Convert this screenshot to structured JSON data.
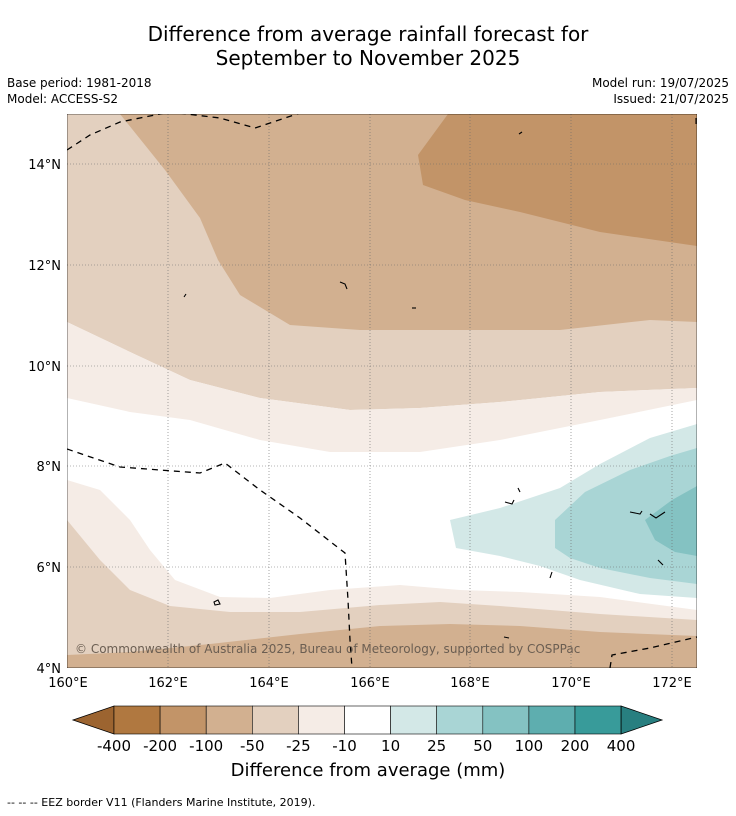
{
  "title": {
    "line1": "Difference from average rainfall forecast for",
    "line2": "September to November 2025"
  },
  "meta": {
    "base_period": "Base period: 1981-2018",
    "model": "Model: ACCESS-S2",
    "model_run": "Model run: 19/07/2025",
    "issued": "Issued: 21/07/2025"
  },
  "map": {
    "extent": {
      "lon": [
        160,
        172.5
      ],
      "lat": [
        4,
        15
      ]
    },
    "lon_ticks": [
      {
        "value": 160,
        "label": "160°E"
      },
      {
        "value": 162,
        "label": "162°E"
      },
      {
        "value": 164,
        "label": "164°E"
      },
      {
        "value": 166,
        "label": "166°E"
      },
      {
        "value": 168,
        "label": "168°E"
      },
      {
        "value": 170,
        "label": "170°E"
      },
      {
        "value": 172,
        "label": "172°E"
      }
    ],
    "lat_ticks": [
      {
        "value": 4,
        "label": "4°N"
      },
      {
        "value": 6,
        "label": "6°N"
      },
      {
        "value": 8,
        "label": "8°N"
      },
      {
        "value": 10,
        "label": "10°N"
      },
      {
        "value": 12,
        "label": "12°N"
      },
      {
        "value": 14,
        "label": "14°N"
      }
    ],
    "gridlines": true,
    "copyright": "© Commonwealth of Australia 2025, Bureau of Meteorology, supported by COSPPac"
  },
  "colorbar": {
    "labels": [
      "-400",
      "-200",
      "-100",
      "-50",
      "-25",
      "-10",
      "10",
      "25",
      "50",
      "100",
      "200",
      "400"
    ],
    "colors": [
      "#9c6430",
      "#b07840",
      "#c29468",
      "#d2b090",
      "#e3d0bf",
      "#f5ece6",
      "#ffffff",
      "#d3e8e7",
      "#a9d5d5",
      "#84c2c2",
      "#5eaeaf",
      "#389b9a",
      "#287f80"
    ],
    "title": "Difference from average (mm)"
  },
  "footnote": "--  --  -- EEZ border V11 (Flanders Marine Institute, 2019).",
  "colors": {
    "brown_dark": "#c29468",
    "brown_mid": "#d2b090",
    "brown_light": "#e3d0bf",
    "brown_pale": "#f5ece6",
    "teal_pale": "#d3e8e7",
    "teal_light": "#a9d5d5",
    "teal_mid": "#84c2c2"
  }
}
